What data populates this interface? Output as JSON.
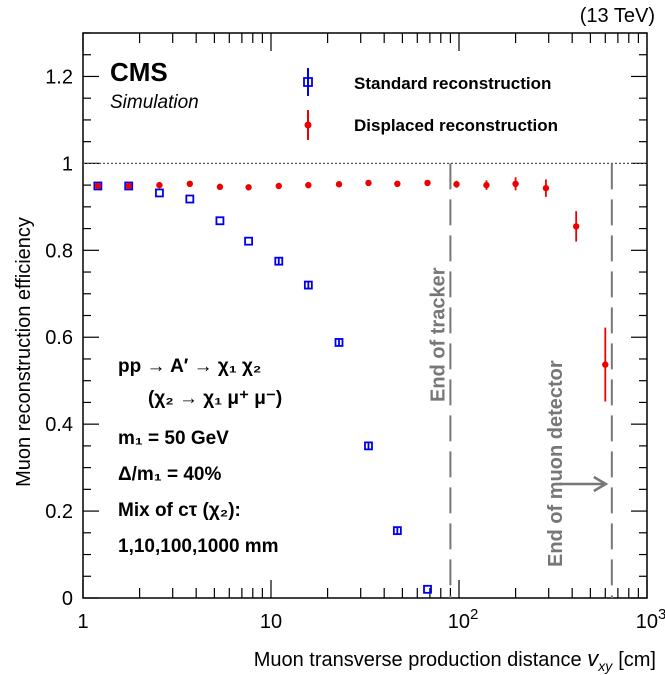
{
  "chart_data": {
    "type": "scatter",
    "energy_label": "(13 TeV)",
    "collab": "CMS",
    "sim_label": "Simulation",
    "ylabel": "Muon reconstruction efficiency",
    "xlabel_main": "Muon transverse production distance",
    "xlabel_var": "v",
    "xlabel_sub": "xy",
    "xlabel_unit": "[cm]",
    "x_scale": "log",
    "xlim": [
      1,
      1000
    ],
    "ylim": [
      0,
      1.3
    ],
    "y_ticks": [
      0,
      0.2,
      0.4,
      0.6,
      0.8,
      1,
      1.2
    ],
    "y_tick_labels": [
      "0",
      "0.2",
      "0.4",
      "0.6",
      "0.8",
      "1",
      "1.2"
    ],
    "x_tick_labels": [
      "1",
      "10",
      "10",
      "10"
    ],
    "x_tick_exponents": [
      "",
      "",
      "2",
      "3"
    ],
    "reference_line": 1,
    "markers": [
      {
        "x": 90,
        "label": "End of tracker"
      },
      {
        "x": 650,
        "label": "End of muon detector"
      }
    ],
    "series": [
      {
        "name": "Standard reconstruction",
        "marker": "open-square",
        "color": "#0000ee",
        "x": [
          1.2,
          1.75,
          2.55,
          3.7,
          5.35,
          7.6,
          11,
          15.8,
          23,
          33,
          47,
          68
        ],
        "y": [
          0.948,
          0.948,
          0.932,
          0.918,
          0.868,
          0.821,
          0.775,
          0.72,
          0.588,
          0.35,
          0.155,
          0.02
        ],
        "yerr": [
          0.004,
          0.004,
          0.005,
          0.005,
          0.006,
          0.006,
          0.007,
          0.008,
          0.008,
          0.009,
          0.008,
          0.005
        ]
      },
      {
        "name": "Displaced reconstruction",
        "marker": "filled-circle",
        "color": "#ee0000",
        "x": [
          1.2,
          1.75,
          2.55,
          3.7,
          5.35,
          7.6,
          11,
          15.8,
          23,
          33,
          47,
          68,
          97,
          140,
          200,
          290,
          420,
          600
        ],
        "y": [
          0.948,
          0.948,
          0.95,
          0.953,
          0.946,
          0.945,
          0.948,
          0.95,
          0.952,
          0.955,
          0.953,
          0.955,
          0.952,
          0.95,
          0.953,
          0.943,
          0.855,
          0.537
        ],
        "yerr": [
          0.004,
          0.004,
          0.004,
          0.004,
          0.004,
          0.004,
          0.004,
          0.005,
          0.005,
          0.005,
          0.006,
          0.006,
          0.008,
          0.011,
          0.015,
          0.02,
          0.035,
          0.085
        ]
      }
    ],
    "annotations": {
      "process_line1": "pp → A′ → χ₁ χ₂",
      "process_line2": "(χ₂ → χ₁ μ⁺ μ⁻)",
      "mass_line": "m₁ = 50 GeV",
      "delta_line": "Δ/m₁ = 40%",
      "mix_line": "Mix of cτ (χ₂):",
      "ctau_line": "1,10,100,1000 mm"
    }
  }
}
